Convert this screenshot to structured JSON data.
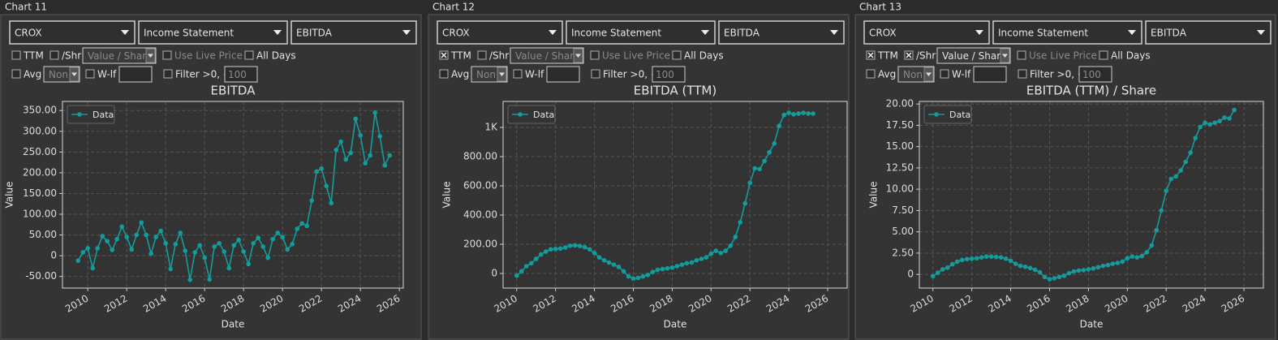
{
  "panels": [
    {
      "title": "Chart 11",
      "controls": {
        "ticker": "CROX",
        "statement": "Income Statement",
        "metric": "EBITDA",
        "ttm": {
          "label": "TTM",
          "checked": false
        },
        "per_share": {
          "label": "/Shr",
          "checked": false
        },
        "per_share_mode": {
          "text": "Value / Share",
          "enabled": false
        },
        "live_price": "Use Live Price",
        "all_days": "All Days",
        "avg": "Avg",
        "avg_mode": "Non",
        "wlf": "W-lf",
        "filter": "Filter >0, <",
        "filter_value": 100
      },
      "chart_data": {
        "type": "line",
        "title": "EBITDA",
        "xlabel": "Date",
        "ylabel": "Value",
        "legend": "upper left",
        "grid": true,
        "x": [
          2009.5,
          2009.75,
          2010,
          2010.25,
          2010.5,
          2010.75,
          2011,
          2011.25,
          2011.5,
          2011.75,
          2012,
          2012.25,
          2012.5,
          2012.75,
          2013,
          2013.25,
          2013.5,
          2013.75,
          2014,
          2014.25,
          2014.5,
          2014.75,
          2015,
          2015.25,
          2015.5,
          2015.75,
          2016,
          2016.25,
          2016.5,
          2016.75,
          2017,
          2017.25,
          2017.5,
          2017.75,
          2018,
          2018.25,
          2018.5,
          2018.75,
          2019,
          2019.25,
          2019.5,
          2019.75,
          2020,
          2020.25,
          2020.5,
          2020.75,
          2021,
          2021.25,
          2021.5,
          2021.75,
          2022,
          2022.25,
          2022.5,
          2022.75,
          2023,
          2023.25,
          2023.5,
          2023.75,
          2024,
          2024.25,
          2024.5,
          2024.75,
          2025,
          2025.25,
          2025.5
        ],
        "series": [
          {
            "name": "Data",
            "color": "#149c9c",
            "values": [
              -12,
              8,
              18,
              -30,
              18,
              47,
              35,
              14,
              40,
              70,
              45,
              15,
              50,
              80,
              50,
              5,
              45,
              60,
              30,
              -32,
              28,
              55,
              12,
              -58,
              8,
              25,
              -5,
              -57,
              22,
              30,
              10,
              -30,
              25,
              38,
              10,
              -20,
              30,
              43,
              22,
              -5,
              40,
              55,
              45,
              15,
              28,
              65,
              78,
              72,
              133,
              203,
              210,
              168,
              127,
              255,
              275,
              232,
              248,
              330,
              290,
              223,
              242,
              345,
              288,
              218,
              242
            ]
          }
        ],
        "xlim": [
          2008.7,
          2026.2
        ],
        "xticks": [
          2010,
          2012,
          2014,
          2016,
          2018,
          2020,
          2022,
          2024,
          2026
        ],
        "ylim": [
          -78,
          372
        ],
        "yticks": [
          {
            "value": -50,
            "label": "-50.00"
          },
          0,
          {
            "value": 50,
            "label": "50.00"
          },
          {
            "value": 100,
            "label": "100.00"
          },
          {
            "value": 150,
            "label": "150.00"
          },
          {
            "value": 200,
            "label": "200.00"
          },
          {
            "value": 250,
            "label": "250.00"
          },
          {
            "value": 300,
            "label": "300.00"
          },
          {
            "value": 350,
            "label": "350.00"
          }
        ]
      }
    },
    {
      "title": "Chart 12",
      "controls": {
        "ticker": "CROX",
        "statement": "Income Statement",
        "metric": "EBITDA",
        "ttm": {
          "label": "TTM",
          "checked": true
        },
        "per_share": {
          "label": "/Shr",
          "checked": false
        },
        "per_share_mode": {
          "text": "Value / Share",
          "enabled": false
        },
        "live_price": "Use Live Price",
        "all_days": "All Days",
        "avg": "Avg",
        "avg_mode": "Non",
        "wlf": "W-lf",
        "filter": "Filter >0, <",
        "filter_value": 100
      },
      "chart_data": {
        "type": "line",
        "title": "EBITDA (TTM)",
        "xlabel": "Date",
        "ylabel": "Value",
        "legend": "upper left",
        "grid": true,
        "x": [
          2010,
          2010.25,
          2010.5,
          2010.75,
          2011,
          2011.25,
          2011.5,
          2011.75,
          2012,
          2012.25,
          2012.5,
          2012.75,
          2013,
          2013.25,
          2013.5,
          2013.75,
          2014,
          2014.25,
          2014.5,
          2014.75,
          2015,
          2015.25,
          2015.5,
          2015.75,
          2016,
          2016.25,
          2016.5,
          2016.75,
          2017,
          2017.25,
          2017.5,
          2017.75,
          2018,
          2018.25,
          2018.5,
          2018.75,
          2019,
          2019.25,
          2019.5,
          2019.75,
          2020,
          2020.25,
          2020.5,
          2020.75,
          2021,
          2021.25,
          2021.5,
          2021.75,
          2022,
          2022.25,
          2022.5,
          2022.75,
          2023,
          2023.25,
          2023.5,
          2023.75,
          2024,
          2024.25,
          2024.5,
          2024.75,
          2025,
          2025.25
        ],
        "series": [
          {
            "name": "Data",
            "color": "#149c9c",
            "values": [
              -15,
              15,
              50,
              70,
              100,
              130,
              150,
              165,
              168,
              170,
              178,
              190,
              192,
              188,
              180,
              165,
              140,
              110,
              90,
              75,
              60,
              45,
              15,
              -20,
              -35,
              -30,
              -20,
              -10,
              10,
              25,
              30,
              35,
              40,
              50,
              60,
              70,
              75,
              90,
              100,
              110,
              135,
              155,
              140,
              155,
              190,
              250,
              350,
              480,
              620,
              720,
              715,
              770,
              830,
              890,
              1010,
              1085,
              1100,
              1090,
              1095,
              1100,
              1095,
              1095
            ]
          }
        ],
        "xlim": [
          2009.3,
          2027
        ],
        "xticks": [
          2010,
          2012,
          2014,
          2016,
          2018,
          2020,
          2022,
          2024,
          2026
        ],
        "ylim": [
          -100,
          1178
        ],
        "yticks": [
          0,
          {
            "value": 200,
            "label": "200.00"
          },
          {
            "value": 400,
            "label": "400.00"
          },
          {
            "value": 600,
            "label": "600.00"
          },
          {
            "value": 800,
            "label": "800.00"
          },
          {
            "value": 1000,
            "label": "1K"
          }
        ]
      }
    },
    {
      "title": "Chart 13",
      "controls": {
        "ticker": "CROX",
        "statement": "Income Statement",
        "metric": "EBITDA",
        "ttm": {
          "label": "TTM",
          "checked": true
        },
        "per_share": {
          "label": "/Shr",
          "checked": true
        },
        "per_share_mode": {
          "text": "Value / Share",
          "enabled": true
        },
        "live_price": "Use Live Price",
        "all_days": "All Days",
        "avg": "Avg",
        "avg_mode": "Non",
        "wlf": "W-lf",
        "filter": "Filter >0, <",
        "filter_value": 100
      },
      "chart_data": {
        "type": "line",
        "title": "EBITDA (TTM) / Share",
        "xlabel": "Date",
        "ylabel": "Value",
        "legend": "upper left",
        "grid": true,
        "x": [
          2010,
          2010.25,
          2010.5,
          2010.75,
          2011,
          2011.25,
          2011.5,
          2011.75,
          2012,
          2012.25,
          2012.5,
          2012.75,
          2013,
          2013.25,
          2013.5,
          2013.75,
          2014,
          2014.25,
          2014.5,
          2014.75,
          2015,
          2015.25,
          2015.5,
          2015.75,
          2016,
          2016.25,
          2016.5,
          2016.75,
          2017,
          2017.25,
          2017.5,
          2017.75,
          2018,
          2018.25,
          2018.5,
          2018.75,
          2019,
          2019.25,
          2019.5,
          2019.75,
          2020,
          2020.25,
          2020.5,
          2020.75,
          2021,
          2021.25,
          2021.5,
          2021.75,
          2022,
          2022.25,
          2022.5,
          2022.75,
          2023,
          2023.25,
          2023.5,
          2023.75,
          2024,
          2024.25,
          2024.5,
          2024.75,
          2025,
          2025.25,
          2025.5
        ],
        "series": [
          {
            "name": "Data",
            "color": "#149c9c",
            "values": [
              -0.2,
              0.2,
              0.6,
              0.8,
              1.2,
              1.5,
              1.7,
              1.8,
              1.85,
              1.9,
              2.0,
              2.1,
              2.1,
              2.05,
              2.0,
              1.85,
              1.6,
              1.25,
              1.0,
              0.9,
              0.75,
              0.55,
              0.25,
              -0.3,
              -0.55,
              -0.45,
              -0.3,
              -0.15,
              0.15,
              0.35,
              0.45,
              0.5,
              0.6,
              0.7,
              0.85,
              1.0,
              1.1,
              1.25,
              1.35,
              1.5,
              1.9,
              2.1,
              2.0,
              2.15,
              2.6,
              3.4,
              5.2,
              7.5,
              9.8,
              11.2,
              11.5,
              12.2,
              13.2,
              14.3,
              16.0,
              17.3,
              17.8,
              17.6,
              17.8,
              18.0,
              18.4,
              18.3,
              19.3
            ]
          }
        ],
        "xlim": [
          2009.3,
          2027
        ],
        "xticks": [
          2010,
          2012,
          2014,
          2016,
          2018,
          2020,
          2022,
          2024,
          2026
        ],
        "ylim": [
          -1.6,
          20.3
        ],
        "yticks": [
          0,
          {
            "value": 2.5,
            "label": "2.50"
          },
          {
            "value": 5,
            "label": "5.00"
          },
          {
            "value": 7.5,
            "label": "7.50"
          },
          {
            "value": 10,
            "label": "10.00"
          },
          {
            "value": 12.5,
            "label": "12.50"
          },
          {
            "value": 15,
            "label": "15.00"
          },
          {
            "value": 17.5,
            "label": "17.50"
          },
          {
            "value": 20,
            "label": "20.00"
          }
        ]
      }
    }
  ]
}
